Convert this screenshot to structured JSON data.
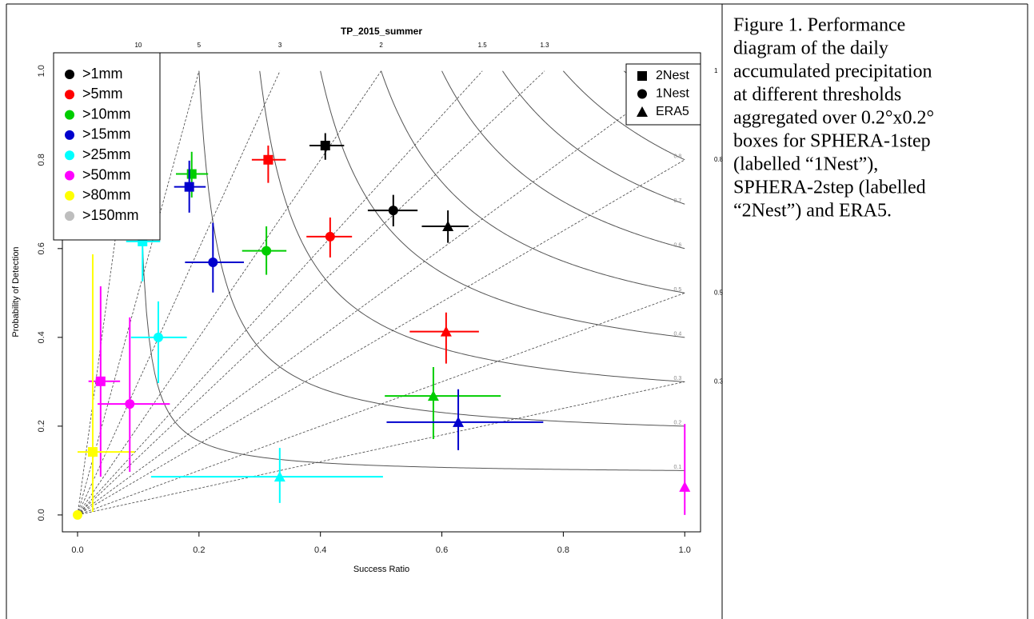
{
  "chart_data": {
    "type": "performance-diagram",
    "title": "TP_2015_summer",
    "x_label": "Success Ratio",
    "y_label": "Probability of Detection",
    "xlim": [
      -0.025,
      1.026
    ],
    "ylim": [
      -0.038,
      1.041
    ],
    "xticks": [
      {
        "value": 0,
        "label": "0.0"
      },
      {
        "value": 0.2,
        "label": "0.2"
      },
      {
        "value": 0.4,
        "label": "0.4"
      },
      {
        "value": 0.6,
        "label": "0.6"
      },
      {
        "value": 0.8,
        "label": "0.8"
      },
      {
        "value": 1,
        "label": "1.0"
      }
    ],
    "yticks": [
      {
        "value": 0,
        "label": "0.0"
      },
      {
        "value": 0.2,
        "label": "0.2"
      },
      {
        "value": 0.4,
        "label": "0.4"
      },
      {
        "value": 0.6,
        "label": "0.6"
      },
      {
        "value": 0.8,
        "label": "0.8"
      },
      {
        "value": 1,
        "label": "1.0"
      }
    ],
    "bias_lines": [
      10,
      5,
      3,
      2,
      1.5,
      1.3,
      1,
      0.8,
      0.5,
      0.3
    ],
    "csi_lines": [
      0.1,
      0.2,
      0.3,
      0.4,
      0.5,
      0.6,
      0.7,
      0.8,
      0.9
    ],
    "thresholds": [
      {
        "name": ">1mm",
        "color": "#000000"
      },
      {
        "name": ">5mm",
        "color": "#ff0000"
      },
      {
        "name": ">10mm",
        "color": "#00cd00"
      },
      {
        "name": ">15mm",
        "color": "#0000cd"
      },
      {
        "name": ">25mm",
        "color": "#00ffff"
      },
      {
        "name": ">50mm",
        "color": "#ff00ff"
      },
      {
        "name": ">80mm",
        "color": "#ffff00"
      },
      {
        "name": ">150mm",
        "color": "#bebebe"
      }
    ],
    "series": [
      {
        "name": "2Nest",
        "marker": "square",
        "x": [
          0.408,
          0.314,
          0.188,
          0.184,
          0.107,
          0.038,
          0.025,
          null
        ],
        "values": [
          0.832,
          0.8,
          0.768,
          0.739,
          0.616,
          0.301,
          0.142,
          null
        ],
        "x_low": [
          0.382,
          0.287,
          0.162,
          0.159,
          0.08,
          0.018,
          0.0,
          null
        ],
        "x_high": [
          0.439,
          0.343,
          0.215,
          0.211,
          0.136,
          0.07,
          0.094,
          null
        ],
        "y_low": [
          0.8,
          0.748,
          0.715,
          0.681,
          0.526,
          0.086,
          0.007,
          null
        ],
        "y_high": [
          0.86,
          0.832,
          0.818,
          0.798,
          0.67,
          0.515,
          0.587,
          null
        ]
      },
      {
        "name": "1Nest",
        "marker": "circle",
        "x": [
          0.52,
          0.416,
          0.311,
          0.223,
          0.133,
          0.086,
          0.0,
          null
        ],
        "values": [
          0.686,
          0.627,
          0.595,
          0.569,
          0.4,
          0.25,
          0.0,
          null
        ],
        "x_low": [
          0.478,
          0.377,
          0.271,
          0.177,
          0.088,
          0.033,
          null,
          null
        ],
        "x_high": [
          0.56,
          0.452,
          0.344,
          0.274,
          0.18,
          0.152,
          null,
          null
        ],
        "y_low": [
          0.65,
          0.58,
          0.541,
          0.501,
          0.297,
          0.097,
          null,
          null
        ],
        "y_high": [
          0.721,
          0.67,
          0.65,
          0.658,
          0.481,
          0.445,
          null,
          null
        ]
      },
      {
        "name": "ERA5",
        "marker": "triangle",
        "x": [
          0.61,
          0.607,
          0.586,
          0.627,
          0.333,
          1.0,
          null,
          null
        ],
        "values": [
          0.65,
          0.413,
          0.268,
          0.209,
          0.086,
          0.063,
          null,
          null
        ],
        "x_low": [
          0.567,
          0.547,
          0.506,
          0.509,
          0.121,
          null,
          null,
          null
        ],
        "x_high": [
          0.644,
          0.661,
          0.697,
          0.767,
          0.503,
          null,
          null,
          null
        ],
        "y_low": [
          0.613,
          0.341,
          0.171,
          0.146,
          0.027,
          0.0,
          null,
          null
        ],
        "y_high": [
          0.686,
          0.456,
          0.333,
          0.283,
          0.151,
          0.205,
          null,
          null
        ]
      }
    ]
  },
  "caption": [
    "Figure 1. Performance",
    "diagram of the daily",
    "accumulated precipitation",
    "at different thresholds",
    "aggregated over 0.2°x0.2°",
    "boxes for SPHERA-1step",
    "(labelled “1Nest”),",
    "SPHERA-2step (labelled",
    "“2Nest”) and ERA5."
  ]
}
